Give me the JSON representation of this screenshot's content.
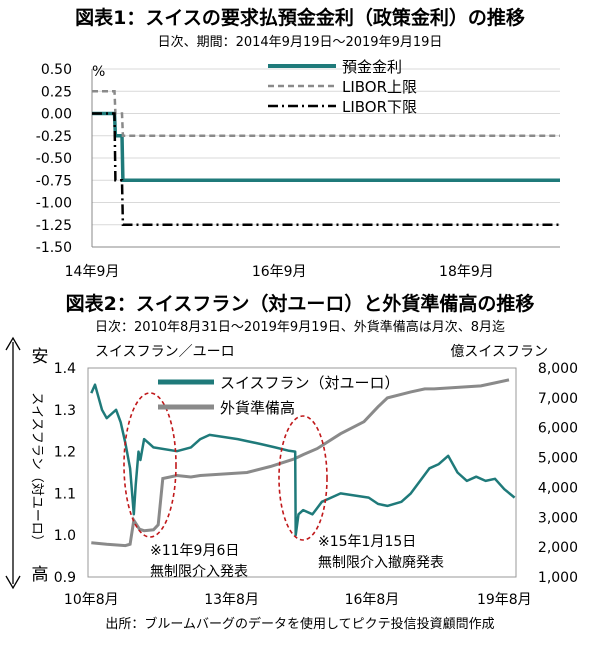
{
  "colors": {
    "teal": "#1f7a7a",
    "gray": "#8a8a8a",
    "black": "#000000",
    "red": "#c0181a"
  },
  "chart_data": [
    {
      "type": "line",
      "title": "図表1：スイスの要求払預金金利（政策金利）の推移",
      "subtitle": "日次、期間：2014年9月19日～2019年9月19日",
      "unit": "%",
      "ylim": [
        -1.5,
        0.5
      ],
      "yticks": [
        "0.50",
        "0.25",
        "0.00",
        "-0.25",
        "-0.50",
        "-0.75",
        "-1.00",
        "-1.25",
        "-1.50"
      ],
      "xticks": [
        "14年9月",
        "16年9月",
        "18年9月"
      ],
      "legend_position": "top-right",
      "series": [
        {
          "name": "預金金利",
          "style": "solid",
          "points": [
            [
              2014.72,
              0.0
            ],
            [
              2014.96,
              0.0
            ],
            [
              2014.97,
              -0.25
            ],
            [
              2015.04,
              -0.25
            ],
            [
              2015.05,
              -0.75
            ],
            [
              2019.72,
              -0.75
            ]
          ]
        },
        {
          "name": "LIBOR上限",
          "style": "dashed",
          "points": [
            [
              2014.72,
              0.25
            ],
            [
              2014.96,
              0.25
            ],
            [
              2014.97,
              0.0
            ],
            [
              2015.04,
              0.0
            ],
            [
              2015.05,
              -0.25
            ],
            [
              2019.72,
              -0.25
            ]
          ]
        },
        {
          "name": "LIBOR下限",
          "style": "dashdot",
          "points": [
            [
              2014.72,
              0.0
            ],
            [
              2014.96,
              0.0
            ],
            [
              2014.97,
              -0.75
            ],
            [
              2015.04,
              -0.75
            ],
            [
              2015.05,
              -1.25
            ],
            [
              2019.72,
              -1.25
            ]
          ]
        }
      ]
    },
    {
      "type": "line",
      "title": "図表2：スイスフラン（対ユーロ）と外貨準備高の推移",
      "subtitle": "日次：2010年8月31日～2019年9月19日、外貨準備高は月次、8月迄",
      "left_axis_label": "スイスフラン／ユーロ",
      "left_axis_side": "スイスフラン（対ユーロ）",
      "left_top": "安",
      "left_bottom": "高",
      "right_axis_label": "億スイスフラン",
      "ylim_left": [
        0.9,
        1.4
      ],
      "ylim_right": [
        1000,
        8000
      ],
      "yticks_left": [
        "1.4",
        "1.3",
        "1.2",
        "1.1",
        "1.0",
        "0.9"
      ],
      "yticks_right": [
        "8,000",
        "7,000",
        "6,000",
        "5,000",
        "4,000",
        "3,000",
        "2,000",
        "1,000"
      ],
      "xticks": [
        "10年8月",
        "13年8月",
        "16年8月",
        "19年8月"
      ],
      "legend_position": "top-left",
      "series": [
        {
          "name": "スイスフラン（対ユーロ）",
          "axis": "left",
          "points": [
            [
              2010.67,
              1.34
            ],
            [
              2010.75,
              1.36
            ],
            [
              2010.9,
              1.3
            ],
            [
              2011.0,
              1.28
            ],
            [
              2011.1,
              1.29
            ],
            [
              2011.2,
              1.3
            ],
            [
              2011.3,
              1.27
            ],
            [
              2011.4,
              1.22
            ],
            [
              2011.5,
              1.16
            ],
            [
              2011.58,
              1.05
            ],
            [
              2011.62,
              1.12
            ],
            [
              2011.68,
              1.2
            ],
            [
              2011.72,
              1.18
            ],
            [
              2011.8,
              1.23
            ],
            [
              2011.9,
              1.22
            ],
            [
              2012.0,
              1.21
            ],
            [
              2012.5,
              1.201
            ],
            [
              2012.8,
              1.21
            ],
            [
              2013.0,
              1.23
            ],
            [
              2013.2,
              1.24
            ],
            [
              2013.5,
              1.235
            ],
            [
              2013.8,
              1.23
            ],
            [
              2014.0,
              1.225
            ],
            [
              2014.3,
              1.218
            ],
            [
              2014.6,
              1.21
            ],
            [
              2014.9,
              1.202
            ],
            [
              2015.03,
              1.2
            ],
            [
              2015.04,
              1.0
            ],
            [
              2015.1,
              1.05
            ],
            [
              2015.2,
              1.06
            ],
            [
              2015.4,
              1.05
            ],
            [
              2015.6,
              1.08
            ],
            [
              2015.8,
              1.09
            ],
            [
              2016.0,
              1.1
            ],
            [
              2016.3,
              1.095
            ],
            [
              2016.6,
              1.09
            ],
            [
              2016.8,
              1.075
            ],
            [
              2017.0,
              1.07
            ],
            [
              2017.3,
              1.08
            ],
            [
              2017.5,
              1.1
            ],
            [
              2017.7,
              1.13
            ],
            [
              2017.9,
              1.16
            ],
            [
              2018.1,
              1.17
            ],
            [
              2018.3,
              1.19
            ],
            [
              2018.5,
              1.15
            ],
            [
              2018.7,
              1.13
            ],
            [
              2018.9,
              1.14
            ],
            [
              2019.1,
              1.13
            ],
            [
              2019.3,
              1.135
            ],
            [
              2019.5,
              1.11
            ],
            [
              2019.72,
              1.09
            ]
          ]
        },
        {
          "name": "外貨準備高",
          "axis": "right",
          "points": [
            [
              2010.67,
              2150
            ],
            [
              2011.0,
              2100
            ],
            [
              2011.4,
              2050
            ],
            [
              2011.5,
              2100
            ],
            [
              2011.58,
              2900
            ],
            [
              2011.7,
              2600
            ],
            [
              2011.8,
              2550
            ],
            [
              2012.0,
              2580
            ],
            [
              2012.1,
              2750
            ],
            [
              2012.2,
              4300
            ],
            [
              2012.5,
              4400
            ],
            [
              2012.8,
              4350
            ],
            [
              2013.0,
              4400
            ],
            [
              2013.5,
              4450
            ],
            [
              2014.0,
              4500
            ],
            [
              2014.5,
              4700
            ],
            [
              2015.0,
              4950
            ],
            [
              2015.2,
              5100
            ],
            [
              2015.5,
              5300
            ],
            [
              2016.0,
              5800
            ],
            [
              2016.5,
              6200
            ],
            [
              2016.8,
              6700
            ],
            [
              2017.0,
              7000
            ],
            [
              2017.5,
              7200
            ],
            [
              2017.8,
              7300
            ],
            [
              2018.0,
              7300
            ],
            [
              2018.5,
              7350
            ],
            [
              2019.0,
              7400
            ],
            [
              2019.3,
              7500
            ],
            [
              2019.6,
              7600
            ]
          ]
        }
      ],
      "annotations": [
        {
          "line1": "※11年9月6日",
          "line2": "無制限介入発表"
        },
        {
          "line1": "※15年1月15日",
          "line2": "無制限介入撤廃発表"
        }
      ]
    }
  ],
  "footer": "出所：ブルームバーグのデータを使用してピクテ投信投資顧問作成"
}
